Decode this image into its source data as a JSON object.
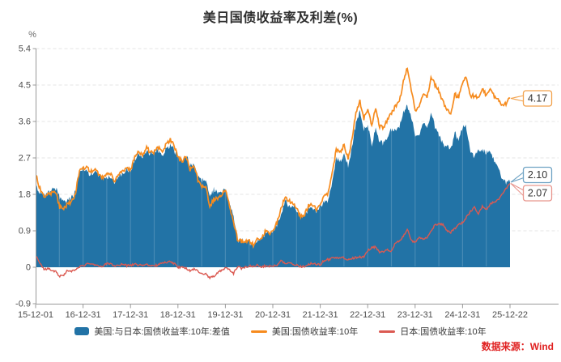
{
  "title": "美日国债收益率及利差(%)",
  "source": "数据来源：Wind",
  "colors": {
    "spread": "#2273A6",
    "us": "#F68B1E",
    "jp": "#DB5A52",
    "spread_callout_border": "#6FA3C4",
    "us_callout_border": "#F2A24D",
    "jp_callout_border": "#E8968E",
    "title_text": "#2F2F2F",
    "source_text": "#E02222",
    "axis": "#9A9A9A",
    "grid": "#E4E4E4",
    "tick_label": "#4D4D4D",
    "callout_text": "#333333"
  },
  "legend": [
    {
      "label": "美国:与日本:国债收益率:10年:差值",
      "swatch": "area",
      "color": "spread"
    },
    {
      "label": "美国:国债收益率:10年",
      "swatch": "line",
      "color": "us"
    },
    {
      "label": "日本:国债收益率:10年",
      "swatch": "line",
      "color": "jp"
    }
  ],
  "chart_data": {
    "type": "area",
    "title": "美日国债收益率及利差(%)",
    "ylabel": "%",
    "ylim": [
      -0.9,
      5.4
    ],
    "grid": "horizontal-dashed",
    "legend_position": "bottom",
    "y_ticks": [
      {
        "v": 5.4,
        "label": "5.4"
      },
      {
        "v": 4.5,
        "label": "4.5"
      },
      {
        "v": 3.6,
        "label": "3.6"
      },
      {
        "v": 2.7,
        "label": "2.7"
      },
      {
        "v": 1.8,
        "label": "1.8"
      },
      {
        "v": 0.9,
        "label": "0.9"
      },
      {
        "v": 0,
        "label": "0"
      },
      {
        "v": -0.9,
        "label": "-0.9"
      }
    ],
    "x_tick_labels": [
      "15-12-01",
      "16-12-31",
      "17-12-31",
      "18-12-31",
      "19-12-31",
      "20-12-31",
      "21-12-31",
      "22-12-31",
      "23-12-31",
      "24-12-31",
      "25-12-22"
    ],
    "x_monthly": {
      "start": "2015-12",
      "end": "2025-12",
      "points": 121
    },
    "series": [
      {
        "key": "spread",
        "name": "美国:与日本:国债收益率:10年:差值",
        "type": "area",
        "derive": "us_minus_jp"
      },
      {
        "key": "us",
        "name": "美国:国债收益率:10年",
        "type": "line",
        "monthly_values": [
          2.27,
          1.94,
          1.74,
          1.78,
          1.83,
          1.84,
          1.49,
          1.45,
          1.57,
          1.6,
          1.83,
          2.37,
          2.45,
          2.45,
          2.36,
          2.4,
          2.28,
          2.21,
          2.3,
          2.3,
          2.12,
          2.33,
          2.38,
          2.42,
          2.4,
          2.72,
          2.87,
          2.74,
          2.95,
          2.83,
          2.85,
          2.96,
          2.86,
          3.05,
          3.15,
          3.01,
          2.69,
          2.63,
          2.73,
          2.41,
          2.51,
          2.14,
          2.0,
          2.02,
          1.5,
          1.68,
          1.69,
          1.78,
          1.92,
          1.51,
          1.13,
          0.7,
          0.64,
          0.65,
          0.66,
          0.55,
          0.72,
          0.68,
          0.88,
          0.84,
          0.93,
          1.09,
          1.44,
          1.74,
          1.65,
          1.58,
          1.45,
          1.24,
          1.3,
          1.52,
          1.55,
          1.43,
          1.52,
          1.79,
          1.83,
          2.32,
          2.89,
          2.85,
          3.02,
          2.67,
          3.15,
          3.83,
          4.1,
          3.68,
          3.88,
          3.52,
          3.92,
          3.48,
          3.44,
          3.64,
          3.81,
          3.97,
          4.09,
          4.59,
          4.93,
          4.37,
          3.88,
          3.95,
          4.25,
          4.2,
          4.68,
          4.51,
          4.36,
          4.09,
          3.91,
          3.75,
          4.28,
          4.18,
          4.58,
          4.7,
          4.24,
          4.23,
          4.17,
          4.42,
          4.24,
          4.37,
          4.23,
          4.12,
          4.0,
          4.05,
          4.17
        ]
      },
      {
        "key": "jp",
        "name": "日本:国债收益率:10年",
        "type": "line",
        "monthly_values": [
          0.27,
          0.1,
          -0.06,
          -0.03,
          -0.08,
          -0.11,
          -0.22,
          -0.19,
          -0.07,
          -0.09,
          -0.05,
          0.02,
          0.04,
          0.08,
          0.06,
          0.07,
          0.02,
          0.04,
          0.09,
          0.08,
          0.01,
          0.06,
          0.07,
          0.04,
          0.05,
          0.08,
          0.05,
          0.05,
          0.06,
          0.04,
          0.04,
          0.06,
          0.11,
          0.13,
          0.13,
          0.09,
          0.0,
          0.0,
          -0.02,
          -0.09,
          -0.04,
          -0.09,
          -0.16,
          -0.15,
          -0.27,
          -0.22,
          -0.13,
          -0.08,
          -0.02,
          -0.07,
          -0.15,
          0.02,
          -0.03,
          0.0,
          0.03,
          0.02,
          0.05,
          0.01,
          0.03,
          0.03,
          0.02,
          0.05,
          0.16,
          0.1,
          0.1,
          0.08,
          0.05,
          0.02,
          0.02,
          0.07,
          0.1,
          0.06,
          0.07,
          0.18,
          0.19,
          0.22,
          0.23,
          0.24,
          0.23,
          0.18,
          0.22,
          0.24,
          0.25,
          0.25,
          0.42,
          0.49,
          0.5,
          0.35,
          0.39,
          0.43,
          0.4,
          0.6,
          0.65,
          0.77,
          0.95,
          0.67,
          0.61,
          0.73,
          0.71,
          0.73,
          0.88,
          1.05,
          1.06,
          1.06,
          0.9,
          0.86,
          0.95,
          1.05,
          1.1,
          1.24,
          1.38,
          1.49,
          1.32,
          1.5,
          1.43,
          1.56,
          1.61,
          1.66,
          1.8,
          1.95,
          2.07
        ]
      }
    ],
    "end_labels": [
      {
        "text": "4.17",
        "series": "us",
        "border": "us_callout_border",
        "dy": 0
      },
      {
        "text": "2.10",
        "series": "spread",
        "border": "spread_callout_border",
        "dy": -9
      },
      {
        "text": "2.07",
        "series": "jp",
        "border": "jp_callout_border",
        "dy": 12
      }
    ]
  }
}
